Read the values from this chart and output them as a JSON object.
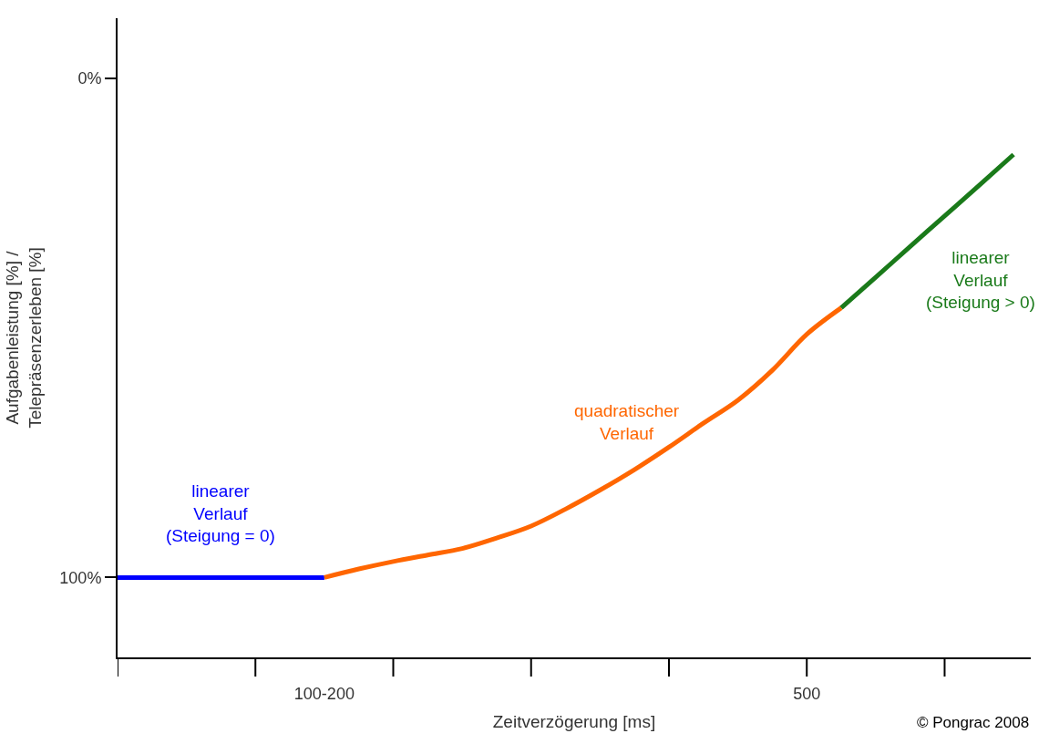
{
  "chart_data": {
    "type": "line",
    "xlabel": "Zeitverzögerung [ms]",
    "ylabel": "Aufgabenleistung [%] /\nTelepräsenzerleben [%]",
    "categories": [
      null,
      null,
      null,
      null,
      null,
      null,
      "100-200",
      null,
      null,
      null,
      null,
      null,
      null,
      null,
      null,
      null,
      null,
      null,
      null,
      null,
      "500",
      null,
      null,
      null,
      null,
      null,
      null
    ],
    "ylim": [
      116,
      -12
    ],
    "yticks": [
      {
        "value": 0,
        "label": "0%"
      },
      {
        "value": 100,
        "label": "100%"
      }
    ],
    "legend": false,
    "marker": "none",
    "line_style": "solid",
    "series": [
      {
        "name": "linearer\nVerlauf\n(Steigung = 0)",
        "color": "#0000ff",
        "values": [
          100,
          100,
          100,
          100,
          100,
          100,
          100,
          null,
          null,
          null,
          null,
          null,
          null,
          null,
          null,
          null,
          null,
          null,
          null,
          null,
          null,
          null,
          null,
          null,
          null,
          null,
          null
        ]
      },
      {
        "name": "quadratischer\nVerlauf",
        "color": "#ff6600",
        "values": [
          null,
          null,
          null,
          null,
          null,
          null,
          100,
          98.3,
          96.8,
          95.5,
          94.2,
          92.1,
          89.7,
          86.3,
          82.5,
          78.4,
          73.9,
          69.1,
          64.5,
          58.5,
          51.3,
          46,
          null,
          null,
          null,
          null,
          null
        ]
      },
      {
        "name": "linearer\nVerlauf\n(Steigung > 0)",
        "color": "#1a7a1a",
        "values": [
          null,
          null,
          null,
          null,
          null,
          null,
          null,
          null,
          null,
          null,
          null,
          null,
          null,
          null,
          null,
          null,
          null,
          null,
          null,
          null,
          null,
          46,
          39.9,
          33.7,
          27.6,
          21.5,
          15.3
        ]
      }
    ],
    "annotations": [
      "© Pongrac 2008"
    ]
  }
}
